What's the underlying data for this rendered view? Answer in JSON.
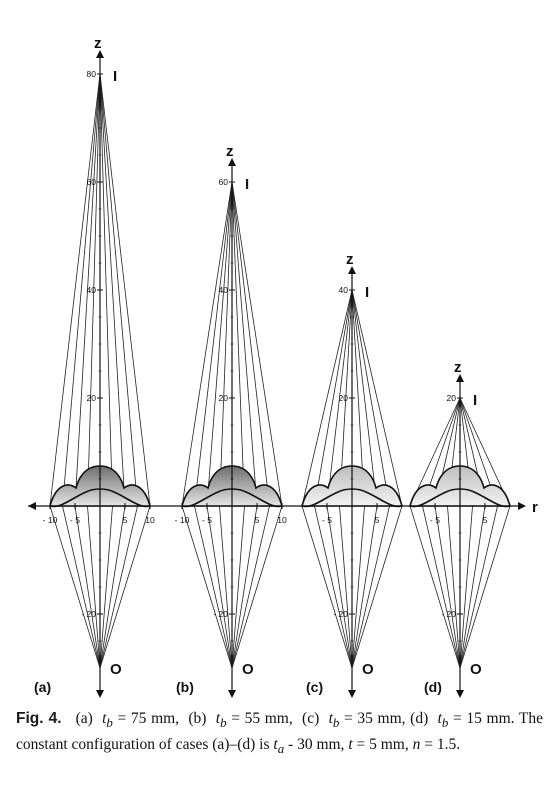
{
  "panels": [
    {
      "id": "a",
      "label": "(a)",
      "image_z": 80,
      "axis_z_label": "z",
      "image_label": "I",
      "object_label": "O",
      "z_ticks": [
        {
          "v": 80,
          "t": "80"
        },
        {
          "v": 60,
          "t": "60"
        },
        {
          "v": 40,
          "t": "40"
        },
        {
          "v": 20,
          "t": "20"
        },
        {
          "v": -20,
          "t": "- 20"
        }
      ],
      "r_ticks": [
        {
          "v": -10,
          "t": "- 10"
        },
        {
          "v": -5,
          "t": "- 5"
        },
        {
          "v": 5,
          "t": "5"
        },
        {
          "v": 10,
          "t": "10"
        }
      ],
      "lens_fill": "dark"
    },
    {
      "id": "b",
      "label": "(b)",
      "image_z": 60,
      "axis_z_label": "z",
      "image_label": "I",
      "object_label": "O",
      "z_ticks": [
        {
          "v": 60,
          "t": "60"
        },
        {
          "v": 40,
          "t": "40"
        },
        {
          "v": 20,
          "t": "20"
        },
        {
          "v": -20,
          "t": "- 20"
        }
      ],
      "r_ticks": [
        {
          "v": -10,
          "t": "- 10"
        },
        {
          "v": -5,
          "t": "- 5"
        },
        {
          "v": 5,
          "t": "5"
        },
        {
          "v": 10,
          "t": "10"
        }
      ],
      "lens_fill": "dark"
    },
    {
      "id": "c",
      "label": "(c)",
      "image_z": 40,
      "axis_z_label": "z",
      "image_label": "I",
      "object_label": "O",
      "z_ticks": [
        {
          "v": 40,
          "t": "40"
        },
        {
          "v": 20,
          "t": "20"
        },
        {
          "v": -20,
          "t": "- 20"
        }
      ],
      "r_ticks": [
        {
          "v": -5,
          "t": "- 5"
        },
        {
          "v": 5,
          "t": "5"
        }
      ],
      "lens_fill": "light"
    },
    {
      "id": "d",
      "label": "(d)",
      "image_z": 20,
      "axis_z_label": "z",
      "image_label": "I",
      "object_label": "O",
      "z_ticks": [
        {
          "v": 20,
          "t": "20"
        },
        {
          "v": -20,
          "t": "- 20"
        }
      ],
      "r_ticks": [
        {
          "v": -5,
          "t": "- 5"
        },
        {
          "v": 5,
          "t": "5"
        }
      ],
      "lens_fill": "light"
    }
  ],
  "r_axis_label": "r",
  "caption": {
    "fig_label": "Fig. 4.",
    "text": "(a)  t_b = 75 mm,  (b)  t_b = 55 mm,  (c)  t_b = 35 mm,  (d)  t_b = 15 mm.  The constant configuration of cases (a)–(d) is t_a – 30 mm, t = 5 mm, n = 1.5."
  },
  "colors": {
    "line": "#111111",
    "lens_dark": "#8c8c8c",
    "lens_light": "#d4d4d4",
    "text": "#111111"
  }
}
